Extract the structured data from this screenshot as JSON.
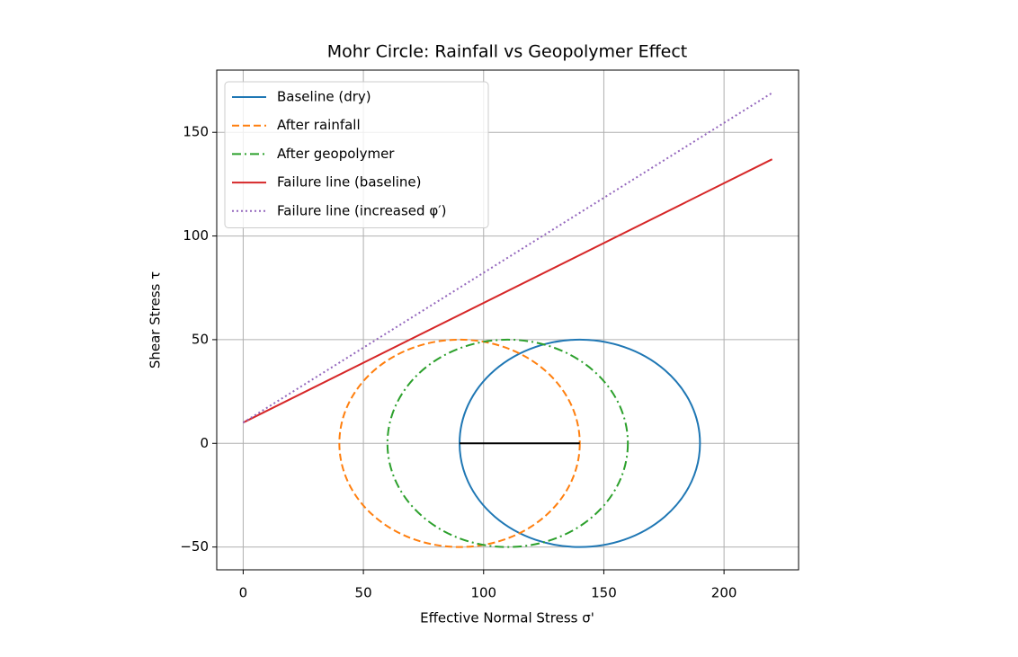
{
  "chart_data": {
    "type": "mohr",
    "title": "Mohr Circle: Rainfall vs Geopolymer Effect",
    "xlabel": "Effective Normal Stress σ'",
    "ylabel": "Shear Stress τ",
    "xlim": [
      -11,
      231
    ],
    "ylim": [
      -61,
      180
    ],
    "xticks": [
      0,
      50,
      100,
      150,
      200
    ],
    "yticks": [
      {
        "value": -50,
        "label": "−50"
      },
      0,
      50,
      100,
      150
    ],
    "grid": true,
    "legend": "upper left",
    "series": [
      {
        "name": "Baseline (dry)",
        "kind": "circle",
        "color": "#1f77b4",
        "linestyle": "solid",
        "center": [
          140,
          0
        ],
        "radius": 50
      },
      {
        "name": "After rainfall",
        "kind": "circle",
        "color": "#ff7f0e",
        "linestyle": "dashed",
        "center": [
          90,
          0
        ],
        "radius": 50
      },
      {
        "name": "After geopolymer",
        "kind": "circle",
        "color": "#2ca02c",
        "linestyle": "dashdot",
        "center": [
          110,
          0
        ],
        "radius": 50
      },
      {
        "name": "Failure line (baseline)",
        "kind": "line",
        "color": "#d62728",
        "linestyle": "solid",
        "x": [
          0,
          220
        ],
        "values": [
          10,
          137
        ]
      },
      {
        "name": "Failure line (increased φ′)",
        "kind": "line",
        "color": "#9467bd",
        "linestyle": "dotted",
        "x": [
          0,
          220
        ],
        "values": [
          10,
          169
        ]
      },
      {
        "kind": "line",
        "color": "#000000",
        "linestyle": "solid",
        "x": [
          90,
          140
        ],
        "values": [
          0,
          0
        ]
      }
    ]
  }
}
